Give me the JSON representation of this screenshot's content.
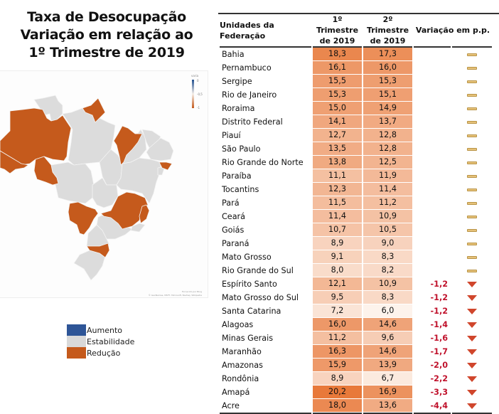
{
  "title": {
    "line1": "Taxa de Desocupação",
    "line2": "Variação em relação ao",
    "line3": "1º Trimestre de 2019"
  },
  "map": {
    "scale_title": "varia",
    "scale_labels": [
      "0",
      "-0,5",
      "-1"
    ],
    "attribution_line1": "Fornecido por Bing",
    "attribution_line2": "© GeoNames, MSFT, Microsoft, Navteq, Wikipedia",
    "colors": {
      "aumento": "#2e5597",
      "estabilidade": "#d9d9d9",
      "reducao": "#c55a1c"
    },
    "reduced_states": [
      "Amazonas",
      "Acre",
      "Rondônia",
      "Amapá",
      "Maranhão",
      "Alagoas",
      "Mato Grosso do Sul",
      "Minas Gerais",
      "Espírito Santo",
      "Santa Catarina"
    ]
  },
  "legend": {
    "items": [
      {
        "label": "Aumento",
        "color": "#2e5597"
      },
      {
        "label": "Estabilidade",
        "color": "#d9d9d9"
      },
      {
        "label": "Redução",
        "color": "#c55a1c"
      }
    ]
  },
  "table": {
    "headers": {
      "name": "Unidades da Federação",
      "q1_line1": "1º Trimestre",
      "q1_line2": "de 2019",
      "q2_line1": "2º Trimestre",
      "q2_line2": "de 2019",
      "variation": "Variação em p.p."
    }
  },
  "chart_data": {
    "type": "table",
    "title": "Taxa de Desocupação - Variação em relação ao 1º Trimestre de 2019",
    "columns": [
      "Unidades da Federação",
      "1º Trimestre de 2019",
      "2º Trimestre de 2019",
      "Variação em p.p."
    ],
    "rows": [
      {
        "uf": "Bahia",
        "q1": "18,3",
        "q2": "17,3",
        "var": "",
        "status": "estavel"
      },
      {
        "uf": "Pernambuco",
        "q1": "16,1",
        "q2": "16,0",
        "var": "",
        "status": "estavel"
      },
      {
        "uf": "Sergipe",
        "q1": "15,5",
        "q2": "15,3",
        "var": "",
        "status": "estavel"
      },
      {
        "uf": "Rio de Janeiro",
        "q1": "15,3",
        "q2": "15,1",
        "var": "",
        "status": "estavel"
      },
      {
        "uf": "Roraima",
        "q1": "15,0",
        "q2": "14,9",
        "var": "",
        "status": "estavel"
      },
      {
        "uf": "Distrito Federal",
        "q1": "14,1",
        "q2": "13,7",
        "var": "",
        "status": "estavel"
      },
      {
        "uf": "Piauí",
        "q1": "12,7",
        "q2": "12,8",
        "var": "",
        "status": "estavel"
      },
      {
        "uf": "São Paulo",
        "q1": "13,5",
        "q2": "12,8",
        "var": "",
        "status": "estavel"
      },
      {
        "uf": "Rio Grande do Norte",
        "q1": "13,8",
        "q2": "12,5",
        "var": "",
        "status": "estavel"
      },
      {
        "uf": "Paraíba",
        "q1": "11,1",
        "q2": "11,9",
        "var": "",
        "status": "estavel"
      },
      {
        "uf": "Tocantins",
        "q1": "12,3",
        "q2": "11,4",
        "var": "",
        "status": "estavel"
      },
      {
        "uf": "Pará",
        "q1": "11,5",
        "q2": "11,2",
        "var": "",
        "status": "estavel"
      },
      {
        "uf": "Ceará",
        "q1": "11,4",
        "q2": "10,9",
        "var": "",
        "status": "estavel"
      },
      {
        "uf": "Goiás",
        "q1": "10,7",
        "q2": "10,5",
        "var": "",
        "status": "estavel"
      },
      {
        "uf": "Paraná",
        "q1": "8,9",
        "q2": "9,0",
        "var": "",
        "status": "estavel"
      },
      {
        "uf": "Mato Grosso",
        "q1": "9,1",
        "q2": "8,3",
        "var": "",
        "status": "estavel"
      },
      {
        "uf": "Rio Grande do Sul",
        "q1": "8,0",
        "q2": "8,2",
        "var": "",
        "status": "estavel"
      },
      {
        "uf": "Espírito Santo",
        "q1": "12,1",
        "q2": "10,9",
        "var": "-1,2",
        "status": "reducao"
      },
      {
        "uf": "Mato Grosso do Sul",
        "q1": "9,5",
        "q2": "8,3",
        "var": "-1,2",
        "status": "reducao"
      },
      {
        "uf": "Santa Catarina",
        "q1": "7,2",
        "q2": "6,0",
        "var": "-1,2",
        "status": "reducao"
      },
      {
        "uf": "Alagoas",
        "q1": "16,0",
        "q2": "14,6",
        "var": "-1,4",
        "status": "reducao"
      },
      {
        "uf": "Minas Gerais",
        "q1": "11,2",
        "q2": "9,6",
        "var": "-1,6",
        "status": "reducao"
      },
      {
        "uf": "Maranhão",
        "q1": "16,3",
        "q2": "14,6",
        "var": "-1,7",
        "status": "reducao"
      },
      {
        "uf": "Amazonas",
        "q1": "15,9",
        "q2": "13,9",
        "var": "-2,0",
        "status": "reducao"
      },
      {
        "uf": "Rondônia",
        "q1": "8,9",
        "q2": "6,7",
        "var": "-2,2",
        "status": "reducao"
      },
      {
        "uf": "Amapá",
        "q1": "20,2",
        "q2": "16,9",
        "var": "-3,3",
        "status": "reducao"
      },
      {
        "uf": "Acre",
        "q1": "18,0",
        "q2": "13,6",
        "var": "-4,4",
        "status": "reducao"
      }
    ],
    "heat_scale": {
      "min": 6.0,
      "max": 20.2,
      "low_color": "#fdf3ec",
      "high_color": "#e8793a"
    }
  }
}
